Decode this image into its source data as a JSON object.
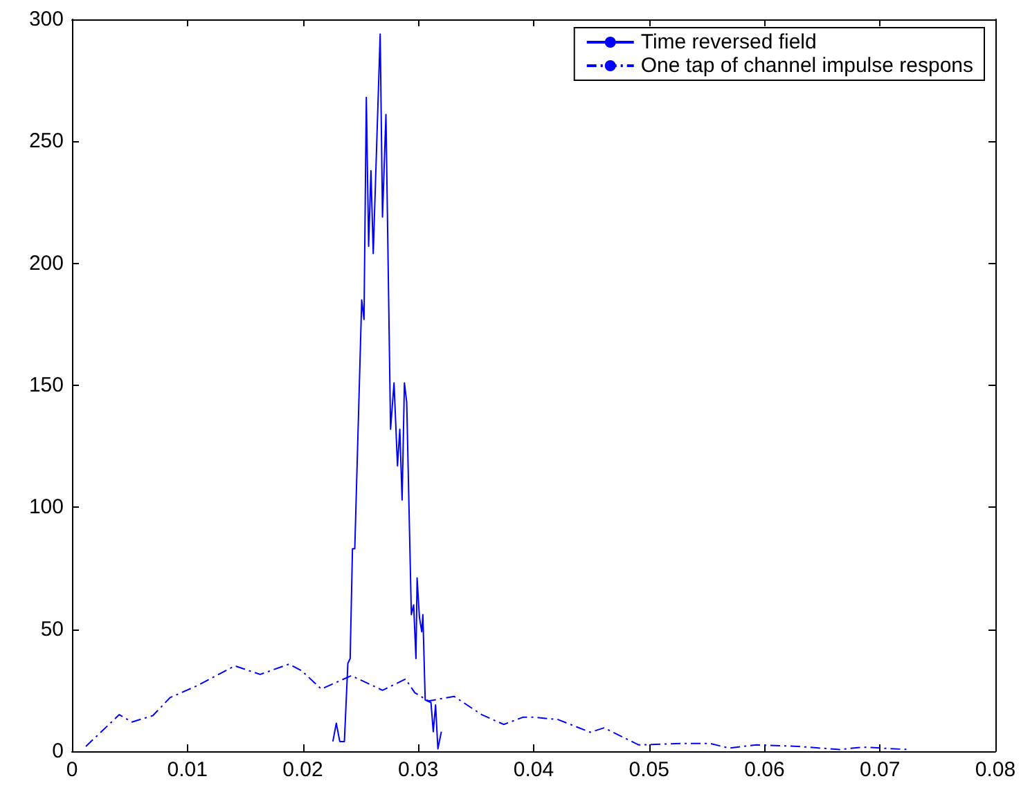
{
  "chart_data": {
    "type": "line",
    "xlim": [
      0,
      0.08
    ],
    "xticks": [
      0,
      0.01,
      0.02,
      0.03,
      0.04,
      0.05,
      0.06,
      0.07,
      0.08
    ],
    "ylim": [
      0,
      300
    ],
    "yticks": [
      0,
      50,
      100,
      150,
      200,
      250,
      300
    ],
    "grid": false,
    "legend": "top right",
    "marker": "none",
    "series": [
      {
        "name": "Time reversed field",
        "color": "#0000ff",
        "line_style": "solid",
        "x": [
          0.0226,
          0.0229,
          0.0232,
          0.0236,
          0.0239,
          0.0241,
          0.0243,
          0.0245,
          0.0251,
          0.0253,
          0.0255,
          0.0257,
          0.0259,
          0.0261,
          0.0267,
          0.0269,
          0.0272,
          0.0276,
          0.0279,
          0.0282,
          0.0284,
          0.0286,
          0.0288,
          0.029,
          0.0294,
          0.0296,
          0.0298,
          0.0299,
          0.0301,
          0.0303,
          0.0304,
          0.0306,
          0.0311,
          0.0313,
          0.0315,
          0.0317,
          0.032
        ],
        "values": [
          4,
          11.5,
          4,
          4,
          36,
          38,
          83,
          83,
          185,
          177,
          268,
          207,
          238,
          204,
          294,
          219,
          261,
          132,
          151,
          117,
          132,
          103,
          151,
          143,
          56,
          60,
          38,
          71,
          55,
          49,
          56,
          21,
          20,
          8,
          19,
          1,
          8
        ]
      },
      {
        "name": "One tap of channel impulse respons",
        "color": "#0000ff",
        "line_style": "dashed",
        "x": [
          0.0012,
          0.0041,
          0.0052,
          0.007,
          0.0085,
          0.0109,
          0.0141,
          0.0163,
          0.0188,
          0.0199,
          0.0216,
          0.0242,
          0.0269,
          0.0289,
          0.0297,
          0.0309,
          0.0331,
          0.0355,
          0.0374,
          0.0391,
          0.0399,
          0.0421,
          0.0449,
          0.0461,
          0.0491,
          0.0529,
          0.0553,
          0.0569,
          0.0593,
          0.0629,
          0.0665,
          0.0685,
          0.0725
        ],
        "values": [
          2,
          15,
          12,
          14.6,
          22,
          27,
          35,
          31.5,
          35.7,
          33,
          25.5,
          31,
          25,
          29.6,
          24,
          20.6,
          22.5,
          15,
          11,
          14,
          14,
          13,
          7.8,
          9.6,
          2.6,
          3.2,
          3.2,
          1.3,
          2.6,
          2,
          0.7,
          1.7,
          0.7
        ]
      }
    ]
  }
}
